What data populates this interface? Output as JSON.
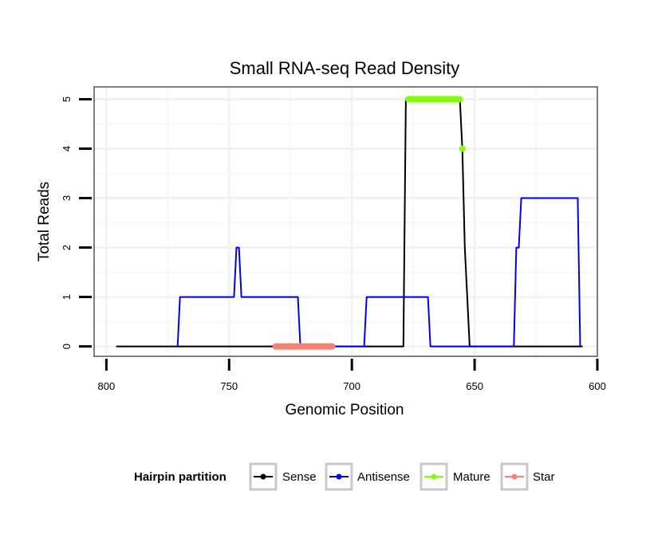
{
  "chart_data": {
    "type": "line",
    "title": "Small RNA-seq Read Density",
    "xlabel": "Genomic Position",
    "ylabel": "Total Reads",
    "xlim": [
      805,
      600
    ],
    "ylim": [
      -0.2,
      5.25
    ],
    "x_reversed": true,
    "xticks": [
      800,
      750,
      700,
      650,
      600
    ],
    "xtick_labels": [
      "800",
      "750",
      "700",
      "650",
      "600"
    ],
    "yticks": [
      0,
      1,
      2,
      3,
      4,
      5
    ],
    "ytick_labels": [
      "0",
      "1",
      "2",
      "3",
      "4",
      "5"
    ],
    "grid": true,
    "legend": {
      "title": "Hairpin partition",
      "position": "bottom",
      "entries": [
        "Sense",
        "Antisense",
        "Mature",
        "Star"
      ]
    },
    "series": [
      {
        "name": "Sense",
        "color": "#000000",
        "style": "line",
        "points": [
          [
            796,
            0
          ],
          [
            679,
            0
          ],
          [
            678,
            5
          ],
          [
            656,
            5
          ],
          [
            655,
            4
          ],
          [
            654,
            2
          ],
          [
            652,
            0
          ],
          [
            606,
            0
          ]
        ]
      },
      {
        "name": "Antisense",
        "color": "#0000ee",
        "style": "line",
        "points": [
          [
            771,
            0
          ],
          [
            770,
            1
          ],
          [
            748,
            1
          ],
          [
            747,
            2
          ],
          [
            746,
            2
          ],
          [
            745,
            1
          ],
          [
            722,
            1
          ],
          [
            721,
            0
          ],
          [
            695,
            0
          ],
          [
            694,
            1
          ],
          [
            669,
            1
          ],
          [
            668,
            0
          ],
          [
            634,
            0
          ],
          [
            633,
            2
          ],
          [
            632,
            2
          ],
          [
            631,
            3
          ],
          [
            608,
            3
          ],
          [
            607,
            0
          ]
        ]
      },
      {
        "name": "Mature",
        "color": "#7fff00",
        "style": "dots",
        "segments": [
          [
            [
              677,
              5
            ],
            [
              656,
              5
            ]
          ]
        ],
        "points": [
          [
            655,
            4
          ]
        ]
      },
      {
        "name": "Star",
        "color": "#fa8072",
        "style": "dots",
        "segments": [
          [
            [
              731,
              0
            ],
            [
              708,
              0
            ]
          ]
        ],
        "points": []
      }
    ]
  }
}
